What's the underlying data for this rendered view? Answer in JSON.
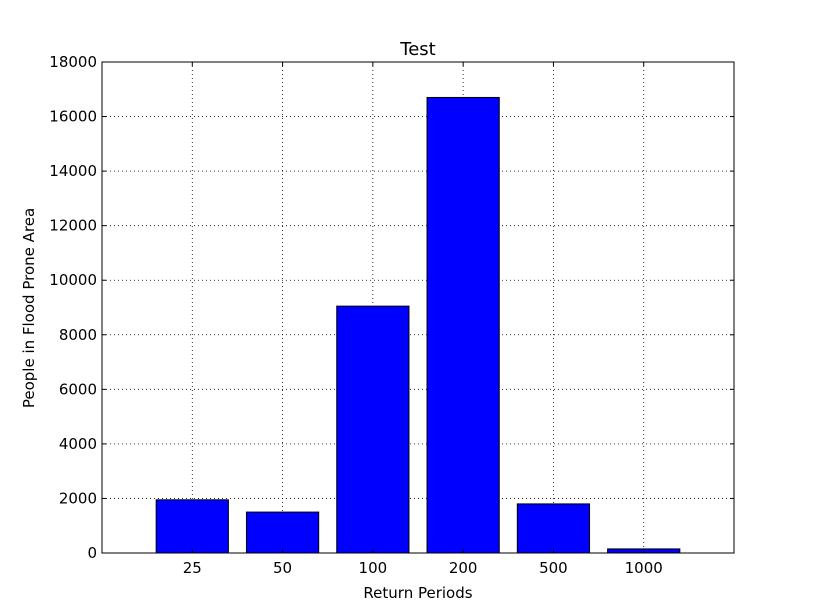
{
  "chart_data": {
    "type": "bar",
    "title": "Test",
    "xlabel": "Return Periods",
    "ylabel": "People in Flood Prone Area",
    "categories": [
      "25",
      "50",
      "100",
      "200",
      "500",
      "1000"
    ],
    "values": [
      1950,
      1500,
      9050,
      16700,
      1800,
      150
    ],
    "ylim": [
      0,
      18000
    ],
    "yticks": [
      "0",
      "2000",
      "4000",
      "6000",
      "8000",
      "10000",
      "12000",
      "14000",
      "16000",
      "18000"
    ],
    "grid": true,
    "bar_color": "#0000ff",
    "edge_color": "#000000"
  }
}
